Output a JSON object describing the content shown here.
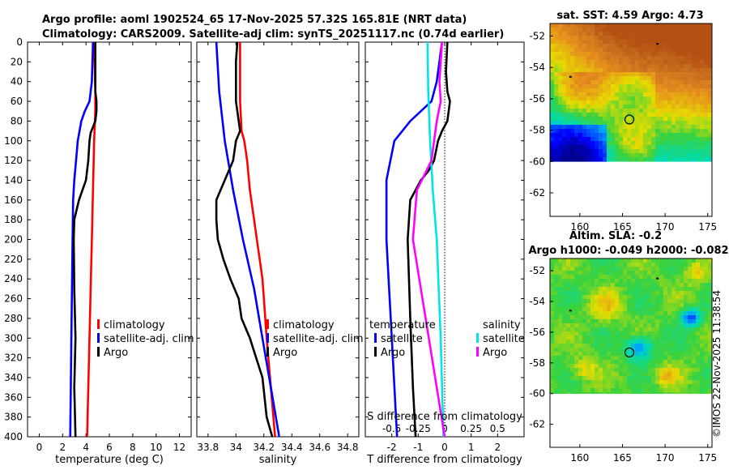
{
  "titles": {
    "line1": "Argo profile: aoml 1902524_65 17-Nov-2025 57.32S 165.81E (NRT data)",
    "line2": "Climatology: CARS2009. Satellite-adj clim: synTS_20251117.nc (0.74d earlier)"
  },
  "colors": {
    "climatology": "#ff0000",
    "satellite": "#0000ff",
    "argo": "#000000",
    "s_satellite": "#00e5e5",
    "s_argo": "#ff00ff",
    "land": "#ffffff"
  },
  "chart_data": [
    {
      "id": "temperature-profile",
      "type": "line",
      "xlabel": "temperature (deg C)",
      "ylabel": "",
      "xlim": [
        -1,
        13
      ],
      "ylim": [
        400,
        0
      ],
      "xticks": [
        "0",
        "2",
        "4",
        "6",
        "8",
        "10",
        "12"
      ],
      "xtick_values": [
        0,
        2,
        4,
        6,
        8,
        10,
        12
      ],
      "yticks": [
        "0",
        "20",
        "40",
        "60",
        "80",
        "100",
        "120",
        "140",
        "160",
        "180",
        "200",
        "220",
        "240",
        "260",
        "280",
        "300",
        "320",
        "340",
        "360",
        "380",
        "400"
      ],
      "ytick_values": [
        0,
        20,
        40,
        60,
        80,
        100,
        120,
        140,
        160,
        180,
        200,
        220,
        240,
        260,
        280,
        300,
        320,
        340,
        360,
        380,
        400
      ],
      "legend": [
        "climatology",
        "satellite-adj. clim",
        "Argo"
      ],
      "series": [
        {
          "name": "climatology",
          "color": "#ff0000",
          "depth": [
            0,
            50,
            70,
            100,
            150,
            200,
            250,
            300,
            350,
            400
          ],
          "values": [
            4.7,
            4.8,
            4.8,
            4.7,
            4.6,
            4.5,
            4.4,
            4.3,
            4.2,
            4.1
          ]
        },
        {
          "name": "satellite-adj. clim",
          "color": "#0000ff",
          "depth": [
            0,
            40,
            60,
            70,
            80,
            90,
            100,
            120,
            140,
            160,
            200,
            300,
            400
          ],
          "values": [
            4.6,
            4.5,
            4.3,
            3.9,
            3.6,
            3.45,
            3.3,
            3.15,
            3.0,
            2.9,
            2.85,
            2.75,
            2.65
          ]
        },
        {
          "name": "Argo",
          "color": "#000000",
          "depth": [
            0,
            30,
            50,
            60,
            70,
            80,
            86,
            92,
            100,
            120,
            140,
            160,
            180,
            200,
            250,
            300,
            350,
            400
          ],
          "values": [
            4.8,
            4.8,
            4.8,
            4.9,
            4.9,
            4.8,
            4.6,
            4.4,
            4.3,
            4.2,
            4.0,
            3.4,
            3.0,
            2.95,
            3.0,
            3.1,
            3.0,
            3.1
          ]
        }
      ]
    },
    {
      "id": "salinity-profile",
      "type": "line",
      "xlabel": "salinity",
      "ylabel": "",
      "xlim": [
        33.72,
        34.88
      ],
      "ylim": [
        400,
        0
      ],
      "xticks": [
        "33.8",
        "34",
        "34.2",
        "34.4",
        "34.6",
        "34.8"
      ],
      "xtick_values": [
        33.8,
        34.0,
        34.2,
        34.4,
        34.6,
        34.8
      ],
      "legend": [
        "climatology",
        "satellite-adj. clim",
        "Argo"
      ],
      "series": [
        {
          "name": "climatology",
          "color": "#ff0000",
          "depth": [
            0,
            60,
            90,
            100,
            120,
            150,
            180,
            200,
            220,
            240,
            260,
            300,
            350,
            400
          ],
          "values": [
            34.03,
            34.03,
            34.04,
            34.06,
            34.08,
            34.1,
            34.13,
            34.15,
            34.17,
            34.19,
            34.2,
            34.22,
            34.25,
            34.28
          ]
        },
        {
          "name": "satellite-adj. clim",
          "color": "#0000ff",
          "depth": [
            0,
            50,
            100,
            150,
            200,
            250,
            300,
            350,
            400
          ],
          "values": [
            33.86,
            33.88,
            33.92,
            33.98,
            34.05,
            34.13,
            34.19,
            34.25,
            34.31
          ]
        },
        {
          "name": "Argo",
          "color": "#000000",
          "depth": [
            0,
            20,
            40,
            60,
            80,
            90,
            100,
            120,
            140,
            160,
            180,
            200,
            220,
            240,
            260,
            280,
            300,
            340,
            380,
            400
          ],
          "values": [
            34.01,
            34.0,
            34.0,
            34.0,
            34.02,
            34.03,
            34.0,
            33.98,
            33.92,
            33.86,
            33.86,
            33.87,
            33.91,
            33.96,
            34.02,
            34.04,
            34.1,
            34.19,
            34.22,
            34.26
          ]
        }
      ]
    },
    {
      "id": "difference-profile",
      "type": "line",
      "xlabel": "T difference from climatology",
      "top_label": "S difference from climatology",
      "xlim": [
        -3,
        3
      ],
      "ylim": [
        400,
        0
      ],
      "xticks": [
        "-2",
        "-1",
        "0",
        "1",
        "2"
      ],
      "xtick_values": [
        -2,
        -1,
        0,
        1,
        2
      ],
      "s_ticks": [
        "-0.5",
        "-0.25",
        "0",
        "0.25",
        "0.5"
      ],
      "s_tick_values": [
        -2,
        -1,
        0,
        1,
        2
      ],
      "legend_temperature": {
        "title": "temperature",
        "items": [
          "satellite",
          "Argo"
        ]
      },
      "legend_salinity": {
        "title": "salinity",
        "items": [
          "satellite",
          "Argo"
        ]
      },
      "series": [
        {
          "name": "T satellite",
          "color": "#0000ff",
          "depth": [
            0,
            40,
            60,
            70,
            80,
            100,
            140,
            200,
            300,
            400
          ],
          "values": [
            -0.1,
            -0.3,
            -0.5,
            -0.9,
            -1.3,
            -1.9,
            -2.2,
            -2.2,
            -2.0,
            -1.8
          ]
        },
        {
          "name": "T Argo",
          "color": "#000000",
          "depth": [
            0,
            30,
            50,
            60,
            80,
            90,
            100,
            120,
            130,
            140,
            160,
            200,
            280,
            350,
            400
          ],
          "values": [
            0.1,
            0.05,
            0.1,
            0.2,
            0.1,
            -0.1,
            -0.25,
            -0.4,
            -0.6,
            -0.9,
            -1.3,
            -1.4,
            -1.3,
            -1.2,
            -1.1
          ]
        },
        {
          "name": "S satellite",
          "color": "#00e5e5",
          "depth": [
            0,
            50,
            100,
            150,
            200,
            300,
            400
          ],
          "values": [
            -0.65,
            -0.62,
            -0.55,
            -0.45,
            -0.3,
            -0.15,
            -0.05
          ]
        },
        {
          "name": "S Argo",
          "color": "#ff00ff",
          "depth": [
            0,
            40,
            60,
            80,
            100,
            120,
            150,
            200,
            250,
            300,
            400
          ],
          "values": [
            -0.1,
            -0.2,
            -0.15,
            -0.3,
            -0.4,
            -0.5,
            -1.05,
            -1.2,
            -0.9,
            -0.6,
            0.0
          ]
        }
      ]
    },
    {
      "id": "sst-map",
      "type": "heatmap",
      "title": "sat. SST: 4.59 Argo: 4.73",
      "xlim": [
        156.5,
        175.5
      ],
      "ylim": [
        -63.5,
        -51.2
      ],
      "xticks": [
        "160",
        "165",
        "170",
        "175"
      ],
      "xtick_values": [
        160,
        165,
        170,
        175
      ],
      "yticks": [
        "-52",
        "-54",
        "-56",
        "-58",
        "-60",
        "-62"
      ],
      "ytick_values": [
        -52,
        -54,
        -56,
        -58,
        -60,
        -62
      ],
      "data_extent_lat": [
        -60,
        -51.2
      ],
      "argo_position": {
        "lon": 165.81,
        "lat": -57.32
      }
    },
    {
      "id": "sla-map",
      "type": "heatmap",
      "title_line1": "Altim. SLA: -0.2",
      "title_line2": "Argo h1000: -0.049 h2000: -0.082",
      "xlim": [
        156.5,
        175.5
      ],
      "ylim": [
        -63.5,
        -51.2
      ],
      "xticks": [
        "160",
        "165",
        "170",
        "175"
      ],
      "xtick_values": [
        160,
        165,
        170,
        175
      ],
      "yticks": [
        "-52",
        "-54",
        "-56",
        "-58",
        "-60",
        "-62"
      ],
      "ytick_values": [
        -52,
        -54,
        -56,
        -58,
        -60,
        -62
      ],
      "data_extent_lat": [
        -60,
        -51.2
      ],
      "argo_position": {
        "lon": 165.81,
        "lat": -57.32
      }
    }
  ],
  "watermark": "©IMOS 22-Nov-2025 11:38:54"
}
